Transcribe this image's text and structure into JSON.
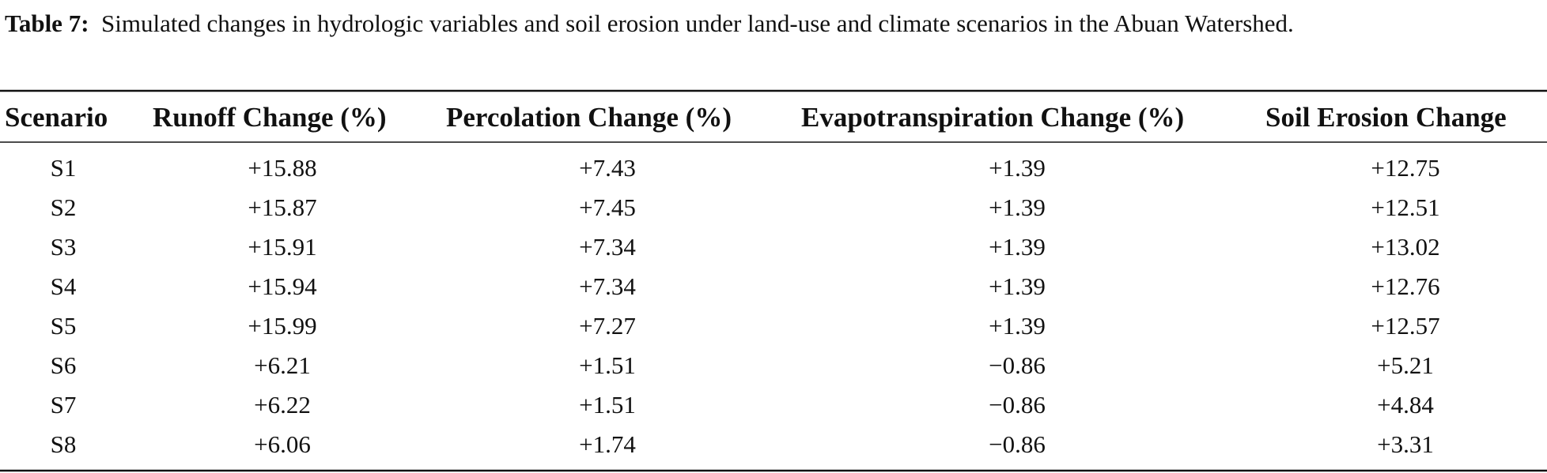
{
  "caption": {
    "label": "Table 7:",
    "text": "Simulated changes in hydrologic variables and soil erosion under land-use and climate scenarios in the Abuan Watershed."
  },
  "table": {
    "header": [
      "Scenario",
      "Runoff Change (%)",
      "Percolation Change (%)",
      "Evapotranspiration Change (%)",
      "Soil Erosion Change"
    ],
    "rows": [
      [
        "S1",
        "+15.88",
        "+7.43",
        "+1.39",
        "+12.75"
      ],
      [
        "S2",
        "+15.87",
        "+7.45",
        "+1.39",
        "+12.51"
      ],
      [
        "S3",
        "+15.91",
        "+7.34",
        "+1.39",
        "+13.02"
      ],
      [
        "S4",
        "+15.94",
        "+7.34",
        "+1.39",
        "+12.76"
      ],
      [
        "S5",
        "+15.99",
        "+7.27",
        "+1.39",
        "+12.57"
      ],
      [
        "S6",
        "+6.21",
        "+1.51",
        "−0.86",
        "+5.21"
      ],
      [
        "S7",
        "+6.22",
        "+1.51",
        "−0.86",
        "+4.84"
      ],
      [
        "S8",
        "+6.06",
        "+1.74",
        "−0.86",
        "+3.31"
      ]
    ]
  }
}
